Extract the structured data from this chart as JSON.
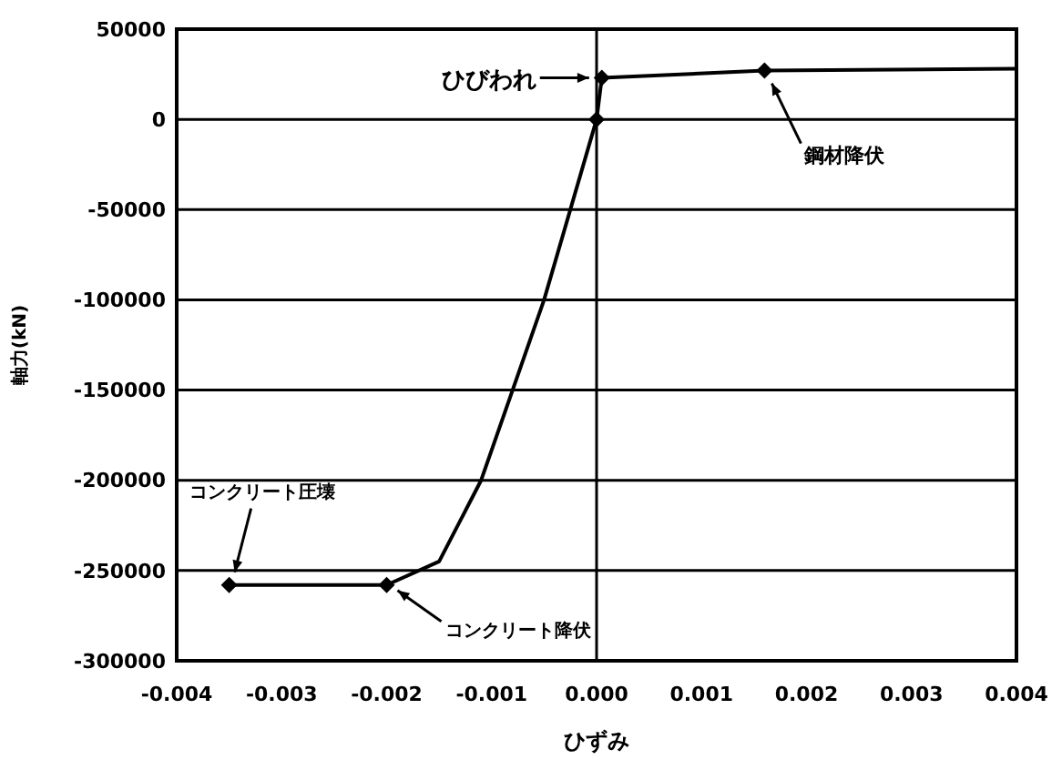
{
  "chart_data": {
    "type": "line",
    "xlabel": "ひずみ",
    "ylabel": "軸力(kN)",
    "xlim": [
      -0.004,
      0.004
    ],
    "xticks": [
      {
        "value": -0.004,
        "label": "-0.004"
      },
      {
        "value": -0.003,
        "label": "-0.003"
      },
      {
        "value": -0.002,
        "label": "-0.002"
      },
      {
        "value": -0.001,
        "label": "-0.001"
      },
      {
        "value": 0,
        "label": "0.000"
      },
      {
        "value": 0.001,
        "label": "0.001"
      },
      {
        "value": 0.002,
        "label": "0.002"
      },
      {
        "value": 0.003,
        "label": "0.003"
      },
      {
        "value": 0.004,
        "label": "0.004"
      }
    ],
    "ylim": [
      -300000,
      50000
    ],
    "yticks": [
      -300000,
      -250000,
      -200000,
      -150000,
      -100000,
      -50000,
      0,
      50000
    ],
    "grid": "y",
    "ref_lines": [
      {
        "axis": "x",
        "value": 0,
        "color": "#000000"
      }
    ],
    "series": [
      {
        "color": "#000000",
        "marker": "none",
        "x": [
          -0.0035,
          -0.002,
          -0.0015,
          -0.0011,
          -0.0008,
          -0.0005,
          0,
          5e-05,
          0.0016,
          0.004
        ],
        "values": [
          -258000,
          -258000,
          -245000,
          -200000,
          -150000,
          -100000,
          0,
          23000,
          27000,
          28000
        ]
      },
      {
        "type": "scatter",
        "color": "#000000",
        "marker": "diamond",
        "x": [
          -0.0035,
          -0.002,
          0,
          5e-05,
          0.0016
        ],
        "values": [
          -258000,
          -258000,
          0,
          23000,
          27000
        ]
      }
    ],
    "annotations": [
      {
        "text": "ひびわれ",
        "x": 5e-05,
        "y": 23000
      },
      {
        "text": "鋼材降伏",
        "x": 0.0016,
        "y": 27000
      },
      {
        "text": "コンクリート圧壊",
        "x": -0.0035,
        "y": -258000
      },
      {
        "text": "コンクリート降伏",
        "x": -0.002,
        "y": -258000
      }
    ]
  }
}
